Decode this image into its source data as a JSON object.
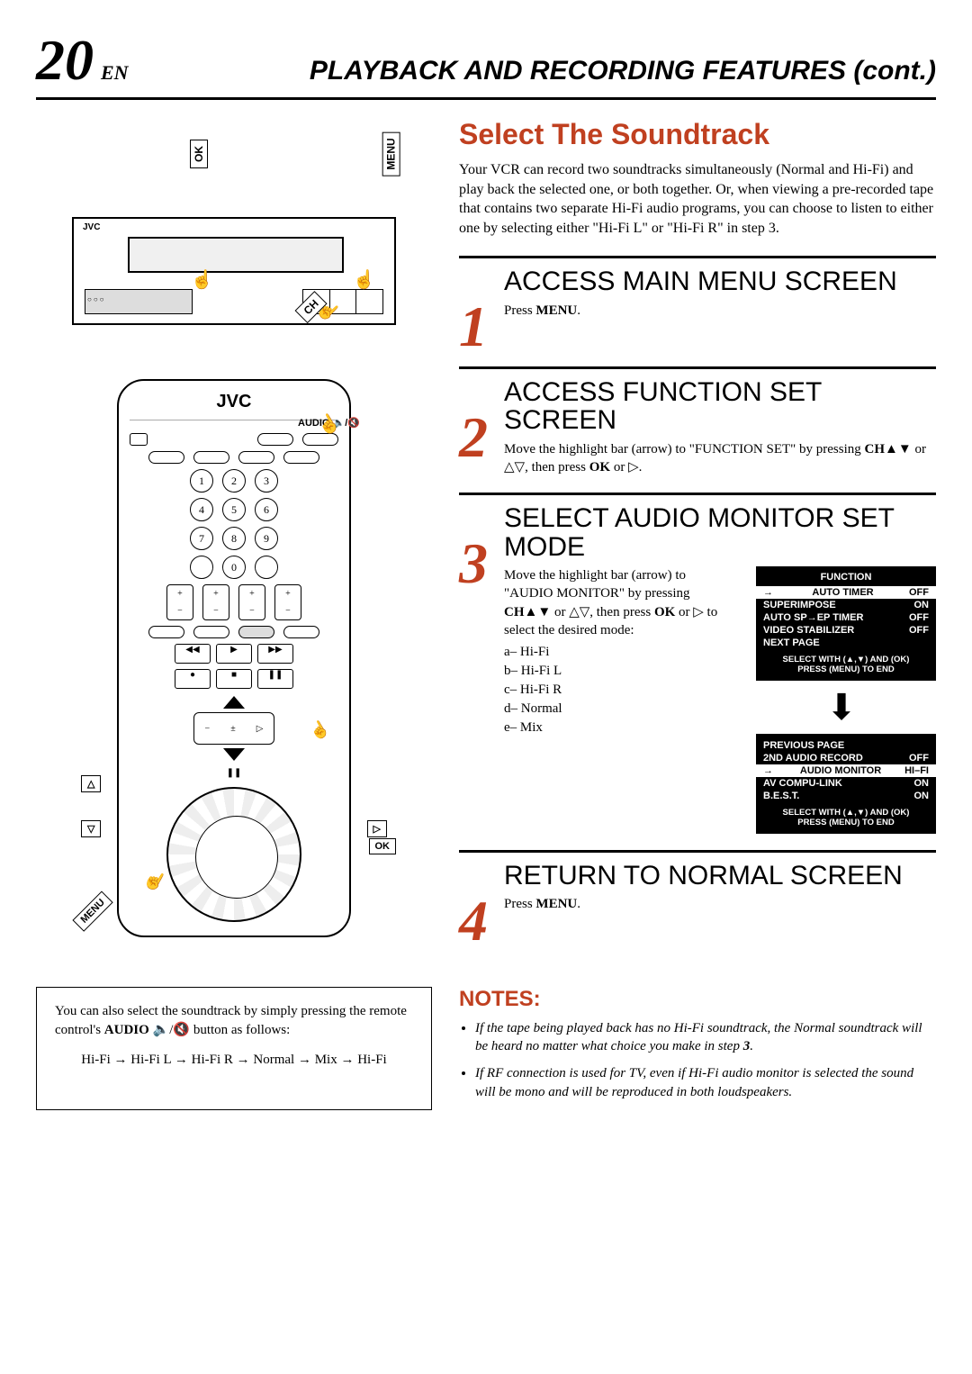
{
  "header": {
    "page_number": "20",
    "lang": "EN",
    "title": "PLAYBACK AND RECORDING FEATURES (cont.)"
  },
  "section_title": "Select The Soundtrack",
  "intro": "Your VCR can record two soundtracks simultaneously (Normal and Hi-Fi) and play back the selected one, or both together. Or, when viewing a pre-recorded tape that contains two separate Hi-Fi audio programs, you can choose to listen to either one by selecting either \"Hi-Fi L\" or \"Hi-Fi R\" in step 3.",
  "vcr": {
    "brand": "JVC",
    "callouts": {
      "ok": "OK",
      "menu": "MENU",
      "ch": "CH"
    }
  },
  "remote": {
    "brand": "JVC",
    "audio_label": "AUDIO 🔈/🔇",
    "callouts": {
      "up": "△",
      "down": "▽",
      "right": "▷",
      "ok": "OK",
      "menu": "MENU"
    },
    "digits": [
      "1",
      "2",
      "3",
      "4",
      "5",
      "6",
      "7",
      "8",
      "9",
      "0"
    ]
  },
  "steps": [
    {
      "n": "1",
      "title": "ACCESS MAIN MENU SCREEN",
      "text": "Press <b>MENU</b>."
    },
    {
      "n": "2",
      "title": "ACCESS FUNCTION SET SCREEN",
      "text": "Move the highlight bar (arrow) to \"FUNCTION SET\" by pressing <b>CH▲▼</b> or △▽, then press <b>OK</b> or ▷."
    },
    {
      "n": "3",
      "title": "SELECT AUDIO MONITOR SET MODE",
      "text": "Move the highlight bar (arrow) to \"AUDIO MONITOR\" by pressing <b>CH▲▼</b> or △▽, then press <b>OK</b> or ▷ to select the desired mode:",
      "modes": [
        "a– Hi-Fi",
        "b– Hi-Fi L",
        "c– Hi-Fi R",
        "d– Normal",
        "e– Mix"
      ]
    },
    {
      "n": "4",
      "title": "RETURN TO NORMAL SCREEN",
      "text": "Press <b>MENU</b>."
    }
  ],
  "osd1": {
    "title": "FUNCTION",
    "rows": [
      {
        "label": "AUTO TIMER",
        "val": "OFF",
        "sel": true
      },
      {
        "label": "SUPERIMPOSE",
        "val": "ON"
      },
      {
        "label": "AUTO SP→EP TIMER",
        "val": "OFF"
      },
      {
        "label": "VIDEO STABILIZER",
        "val": "OFF"
      },
      {
        "label": "NEXT PAGE",
        "val": ""
      }
    ],
    "footer1": "SELECT WITH (▲,▼) AND (OK)",
    "footer2": "PRESS (MENU) TO END"
  },
  "osd2": {
    "rows": [
      {
        "label": "PREVIOUS PAGE",
        "val": ""
      },
      {
        "label": "2ND AUDIO RECORD",
        "val": "OFF"
      },
      {
        "label": "AUDIO MONITOR",
        "val": "HI–FI",
        "sel": true
      },
      {
        "label": "AV COMPU-LINK",
        "val": "ON"
      },
      {
        "label": "B.E.S.T.",
        "val": "ON"
      }
    ],
    "footer1": "SELECT WITH (▲,▼) AND (OK)",
    "footer2": "PRESS (MENU) TO END"
  },
  "tip": {
    "text": "You can also select the soundtrack by simply pressing the remote control's <b>AUDIO</b> 🔈/🔇 button as follows:",
    "cycle": "Hi-Fi → Hi-Fi L → Hi-Fi R  → Normal → Mix → Hi-Fi"
  },
  "notes": {
    "title": "NOTES:",
    "items": [
      "If the tape being played back has no Hi-Fi soundtrack, the Normal soundtrack will be heard no matter what choice you make in step <b>3</b>.",
      "If RF connection is used for TV, even if Hi-Fi audio monitor is selected the sound will be mono and will be reproduced in both loudspeakers."
    ]
  },
  "colors": {
    "accent": "#c04020",
    "text": "#000000",
    "bg": "#ffffff"
  }
}
